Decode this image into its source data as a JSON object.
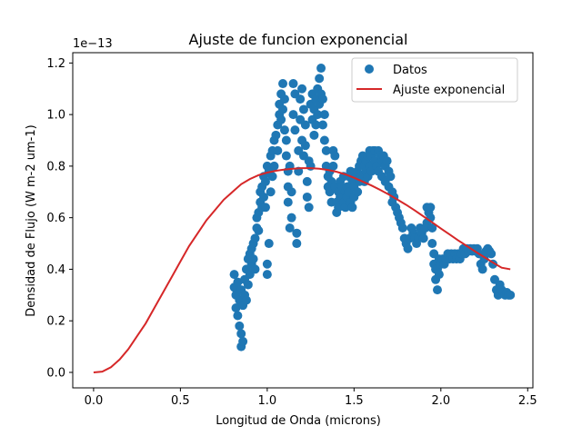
{
  "chart_data": {
    "type": "scatter",
    "title": "Ajuste de funcion exponencial",
    "xlabel": "Longitud de Onda (microns)",
    "ylabel": "Densidad de Flujo (W m-2 um-1)",
    "y_offset_label": "1e−13",
    "xlim": [
      -0.12,
      2.53
    ],
    "ylim": [
      -0.06,
      1.24
    ],
    "xticks": [
      0.0,
      0.5,
      1.0,
      1.5,
      2.0,
      2.5
    ],
    "xtick_labels": [
      "0.0",
      "0.5",
      "1.0",
      "1.5",
      "2.0",
      "2.5"
    ],
    "yticks": [
      0.0,
      0.2,
      0.4,
      0.6,
      0.8,
      1.0,
      1.2
    ],
    "ytick_labels": [
      "0.0",
      "0.2",
      "0.4",
      "0.6",
      "0.8",
      "1.0",
      "1.2"
    ],
    "grid": false,
    "legend_position": "top-right",
    "series": [
      {
        "name": "Datos",
        "kind": "scatter",
        "color": "#1f77b4",
        "points": [
          [
            0.81,
            0.38
          ],
          [
            0.81,
            0.33
          ],
          [
            0.82,
            0.3
          ],
          [
            0.82,
            0.25
          ],
          [
            0.83,
            0.22
          ],
          [
            0.83,
            0.35
          ],
          [
            0.84,
            0.18
          ],
          [
            0.84,
            0.28
          ],
          [
            0.85,
            0.1
          ],
          [
            0.85,
            0.15
          ],
          [
            0.85,
            0.32
          ],
          [
            0.86,
            0.12
          ],
          [
            0.86,
            0.26
          ],
          [
            0.87,
            0.3
          ],
          [
            0.87,
            0.36
          ],
          [
            0.88,
            0.28
          ],
          [
            0.88,
            0.4
          ],
          [
            0.89,
            0.34
          ],
          [
            0.89,
            0.44
          ],
          [
            0.9,
            0.38
          ],
          [
            0.9,
            0.46
          ],
          [
            0.91,
            0.42
          ],
          [
            0.91,
            0.48
          ],
          [
            0.92,
            0.44
          ],
          [
            0.92,
            0.5
          ],
          [
            0.93,
            0.52
          ],
          [
            0.93,
            0.4
          ],
          [
            0.94,
            0.56
          ],
          [
            0.94,
            0.6
          ],
          [
            0.95,
            0.62
          ],
          [
            0.95,
            0.55
          ],
          [
            0.96,
            0.66
          ],
          [
            0.96,
            0.7
          ],
          [
            0.97,
            0.64
          ],
          [
            0.97,
            0.72
          ],
          [
            0.98,
            0.68
          ],
          [
            0.98,
            0.76
          ],
          [
            0.99,
            0.74
          ],
          [
            0.99,
            0.64
          ],
          [
            1.0,
            0.8
          ],
          [
            1.0,
            0.42
          ],
          [
            1.0,
            0.38
          ],
          [
            1.01,
            0.5
          ],
          [
            1.01,
            0.78
          ],
          [
            1.02,
            0.84
          ],
          [
            1.02,
            0.7
          ],
          [
            1.03,
            0.86
          ],
          [
            1.03,
            0.76
          ],
          [
            1.04,
            0.9
          ],
          [
            1.04,
            0.8
          ],
          [
            1.05,
            0.92
          ],
          [
            1.06,
            0.96
          ],
          [
            1.06,
            0.86
          ],
          [
            1.07,
            1.0
          ],
          [
            1.07,
            1.04
          ],
          [
            1.08,
            1.08
          ],
          [
            1.08,
            0.98
          ],
          [
            1.09,
            1.12
          ],
          [
            1.09,
            1.02
          ],
          [
            1.1,
            1.06
          ],
          [
            1.1,
            0.94
          ],
          [
            1.11,
            0.9
          ],
          [
            1.11,
            0.84
          ],
          [
            1.12,
            0.72
          ],
          [
            1.12,
            0.66
          ],
          [
            1.12,
            0.78
          ],
          [
            1.13,
            0.8
          ],
          [
            1.13,
            0.56
          ],
          [
            1.14,
            0.6
          ],
          [
            1.14,
            0.7
          ],
          [
            1.15,
            1.12
          ],
          [
            1.15,
            1.0
          ],
          [
            1.16,
            1.08
          ],
          [
            1.16,
            0.94
          ],
          [
            1.17,
            0.5
          ],
          [
            1.17,
            0.54
          ],
          [
            1.18,
            0.86
          ],
          [
            1.18,
            0.78
          ],
          [
            1.19,
            1.06
          ],
          [
            1.19,
            0.98
          ],
          [
            1.2,
            1.1
          ],
          [
            1.2,
            0.9
          ],
          [
            1.21,
            0.84
          ],
          [
            1.21,
            1.02
          ],
          [
            1.22,
            0.96
          ],
          [
            1.22,
            0.88
          ],
          [
            1.23,
            0.74
          ],
          [
            1.23,
            0.68
          ],
          [
            1.24,
            0.82
          ],
          [
            1.24,
            0.64
          ],
          [
            1.25,
            0.8
          ],
          [
            1.25,
            1.04
          ],
          [
            1.26,
            1.08
          ],
          [
            1.26,
            0.98
          ],
          [
            1.27,
            1.02
          ],
          [
            1.27,
            0.92
          ],
          [
            1.28,
            0.96
          ],
          [
            1.28,
            1.06
          ],
          [
            1.29,
            1.1
          ],
          [
            1.29,
            1.0
          ],
          [
            1.3,
            1.14
          ],
          [
            1.3,
            1.04
          ],
          [
            1.31,
            1.18
          ],
          [
            1.31,
            1.08
          ],
          [
            1.32,
            1.06
          ],
          [
            1.32,
            0.96
          ],
          [
            1.33,
            1.0
          ],
          [
            1.33,
            0.9
          ],
          [
            1.34,
            0.86
          ],
          [
            1.34,
            0.8
          ],
          [
            1.35,
            0.76
          ],
          [
            1.35,
            0.72
          ],
          [
            1.36,
            0.7
          ],
          [
            1.36,
            0.78
          ],
          [
            1.37,
            0.74
          ],
          [
            1.37,
            0.66
          ],
          [
            1.38,
            0.8
          ],
          [
            1.38,
            0.86
          ],
          [
            1.39,
            0.84
          ],
          [
            1.39,
            0.72
          ],
          [
            1.4,
            0.66
          ],
          [
            1.4,
            0.62
          ],
          [
            1.41,
            0.64
          ],
          [
            1.41,
            0.7
          ],
          [
            1.42,
            0.68
          ],
          [
            1.42,
            0.74
          ],
          [
            1.43,
            0.72
          ],
          [
            1.44,
            0.76
          ],
          [
            1.44,
            0.66
          ],
          [
            1.45,
            0.7
          ],
          [
            1.45,
            0.64
          ],
          [
            1.46,
            0.68
          ],
          [
            1.46,
            0.72
          ],
          [
            1.47,
            0.76
          ],
          [
            1.47,
            0.7
          ],
          [
            1.48,
            0.78
          ],
          [
            1.48,
            0.66
          ],
          [
            1.49,
            0.74
          ],
          [
            1.49,
            0.64
          ],
          [
            1.5,
            0.72
          ],
          [
            1.5,
            0.68
          ],
          [
            1.51,
            0.76
          ],
          [
            1.52,
            0.78
          ],
          [
            1.52,
            0.7
          ],
          [
            1.53,
            0.8
          ],
          [
            1.53,
            0.74
          ],
          [
            1.54,
            0.82
          ],
          [
            1.54,
            0.76
          ],
          [
            1.55,
            0.84
          ],
          [
            1.56,
            0.8
          ],
          [
            1.56,
            0.74
          ],
          [
            1.57,
            0.82
          ],
          [
            1.57,
            0.78
          ],
          [
            1.58,
            0.84
          ],
          [
            1.58,
            0.76
          ],
          [
            1.59,
            0.86
          ],
          [
            1.59,
            0.8
          ],
          [
            1.6,
            0.84
          ],
          [
            1.6,
            0.78
          ],
          [
            1.61,
            0.86
          ],
          [
            1.62,
            0.82
          ],
          [
            1.62,
            0.86
          ],
          [
            1.63,
            0.8
          ],
          [
            1.64,
            0.86
          ],
          [
            1.64,
            0.78
          ],
          [
            1.65,
            0.84
          ],
          [
            1.66,
            0.82
          ],
          [
            1.66,
            0.76
          ],
          [
            1.67,
            0.84
          ],
          [
            1.68,
            0.8
          ],
          [
            1.68,
            0.74
          ],
          [
            1.69,
            0.82
          ],
          [
            1.7,
            0.78
          ],
          [
            1.7,
            0.72
          ],
          [
            1.71,
            0.76
          ],
          [
            1.72,
            0.7
          ],
          [
            1.72,
            0.66
          ],
          [
            1.73,
            0.68
          ],
          [
            1.74,
            0.64
          ],
          [
            1.75,
            0.62
          ],
          [
            1.76,
            0.6
          ],
          [
            1.77,
            0.58
          ],
          [
            1.78,
            0.56
          ],
          [
            1.79,
            0.52
          ],
          [
            1.8,
            0.5
          ],
          [
            1.81,
            0.48
          ],
          [
            1.82,
            0.52
          ],
          [
            1.83,
            0.56
          ],
          [
            1.84,
            0.54
          ],
          [
            1.85,
            0.52
          ],
          [
            1.86,
            0.5
          ],
          [
            1.87,
            0.52
          ],
          [
            1.88,
            0.56
          ],
          [
            1.89,
            0.54
          ],
          [
            1.9,
            0.52
          ],
          [
            1.91,
            0.56
          ],
          [
            1.92,
            0.64
          ],
          [
            1.92,
            0.58
          ],
          [
            1.93,
            0.62
          ],
          [
            1.94,
            0.6
          ],
          [
            1.94,
            0.64
          ],
          [
            1.95,
            0.56
          ],
          [
            1.95,
            0.5
          ],
          [
            1.96,
            0.46
          ],
          [
            1.96,
            0.42
          ],
          [
            1.97,
            0.4
          ],
          [
            1.97,
            0.36
          ],
          [
            1.98,
            0.32
          ],
          [
            1.98,
            0.4
          ],
          [
            1.99,
            0.44
          ],
          [
            1.99,
            0.38
          ],
          [
            2.0,
            0.42
          ],
          [
            2.01,
            0.44
          ],
          [
            2.02,
            0.42
          ],
          [
            2.03,
            0.44
          ],
          [
            2.04,
            0.46
          ],
          [
            2.05,
            0.44
          ],
          [
            2.06,
            0.46
          ],
          [
            2.07,
            0.44
          ],
          [
            2.08,
            0.46
          ],
          [
            2.09,
            0.44
          ],
          [
            2.1,
            0.46
          ],
          [
            2.11,
            0.44
          ],
          [
            2.12,
            0.46
          ],
          [
            2.13,
            0.48
          ],
          [
            2.14,
            0.46
          ],
          [
            2.15,
            0.48
          ],
          [
            2.16,
            0.47
          ],
          [
            2.17,
            0.48
          ],
          [
            2.18,
            0.47
          ],
          [
            2.19,
            0.48
          ],
          [
            2.2,
            0.47
          ],
          [
            2.21,
            0.48
          ],
          [
            2.22,
            0.46
          ],
          [
            2.23,
            0.42
          ],
          [
            2.24,
            0.4
          ],
          [
            2.25,
            0.44
          ],
          [
            2.26,
            0.47
          ],
          [
            2.27,
            0.48
          ],
          [
            2.28,
            0.47
          ],
          [
            2.29,
            0.46
          ],
          [
            2.3,
            0.42
          ],
          [
            2.31,
            0.36
          ],
          [
            2.32,
            0.32
          ],
          [
            2.33,
            0.3
          ],
          [
            2.34,
            0.34
          ],
          [
            2.35,
            0.32
          ],
          [
            2.36,
            0.31
          ],
          [
            2.37,
            0.3
          ],
          [
            2.38,
            0.31
          ],
          [
            2.39,
            0.3
          ],
          [
            2.4,
            0.3
          ]
        ]
      },
      {
        "name": "Ajuste exponencial",
        "kind": "line",
        "color": "#d62728",
        "points": [
          [
            0.0,
            0.0
          ],
          [
            0.05,
            0.003
          ],
          [
            0.1,
            0.02
          ],
          [
            0.15,
            0.05
          ],
          [
            0.2,
            0.09
          ],
          [
            0.25,
            0.14
          ],
          [
            0.3,
            0.19
          ],
          [
            0.35,
            0.25
          ],
          [
            0.4,
            0.31
          ],
          [
            0.45,
            0.37
          ],
          [
            0.5,
            0.43
          ],
          [
            0.55,
            0.49
          ],
          [
            0.6,
            0.54
          ],
          [
            0.65,
            0.59
          ],
          [
            0.7,
            0.63
          ],
          [
            0.75,
            0.67
          ],
          [
            0.8,
            0.7
          ],
          [
            0.85,
            0.73
          ],
          [
            0.9,
            0.75
          ],
          [
            0.95,
            0.765
          ],
          [
            1.0,
            0.775
          ],
          [
            1.05,
            0.782
          ],
          [
            1.1,
            0.787
          ],
          [
            1.15,
            0.79
          ],
          [
            1.2,
            0.792
          ],
          [
            1.25,
            0.792
          ],
          [
            1.3,
            0.79
          ],
          [
            1.35,
            0.785
          ],
          [
            1.4,
            0.778
          ],
          [
            1.45,
            0.768
          ],
          [
            1.5,
            0.755
          ],
          [
            1.55,
            0.74
          ],
          [
            1.6,
            0.725
          ],
          [
            1.65,
            0.708
          ],
          [
            1.7,
            0.69
          ],
          [
            1.75,
            0.67
          ],
          [
            1.8,
            0.65
          ],
          [
            1.85,
            0.628
          ],
          [
            1.9,
            0.605
          ],
          [
            1.95,
            0.582
          ],
          [
            2.0,
            0.558
          ],
          [
            2.05,
            0.535
          ],
          [
            2.1,
            0.512
          ],
          [
            2.15,
            0.49
          ],
          [
            2.2,
            0.468
          ],
          [
            2.25,
            0.447
          ],
          [
            2.3,
            0.426
          ],
          [
            2.35,
            0.406
          ],
          [
            2.4,
            0.4
          ]
        ]
      }
    ]
  }
}
